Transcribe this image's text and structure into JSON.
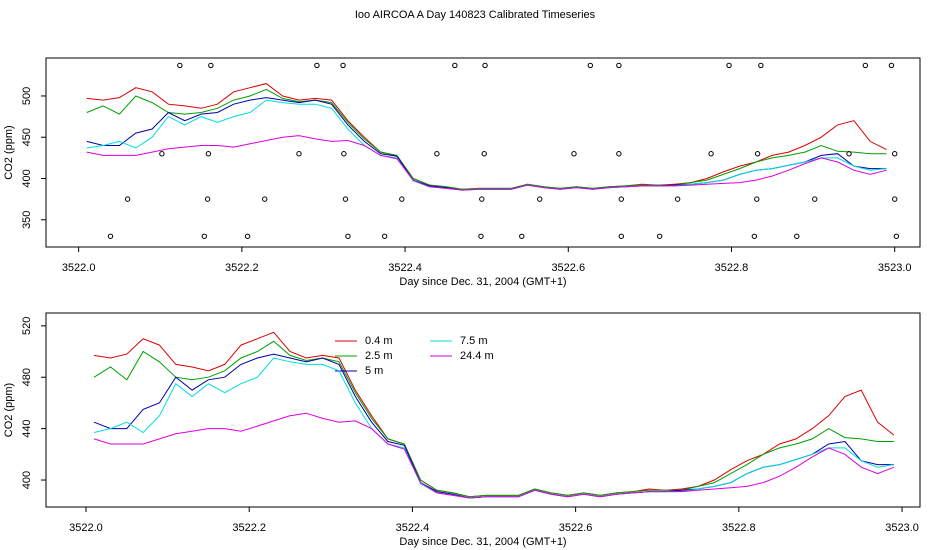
{
  "chart_data": [
    {
      "type": "line",
      "title": "Ioo AIRCOA A  Day 140823  Calibrated Timeseries",
      "xlabel": "Day since Dec. 31, 2004 (GMT+1)",
      "ylabel": "CO2 (ppm)",
      "xlim": [
        3521.96,
        3523.031
      ],
      "ylim": [
        317,
        546
      ],
      "xticks": [
        {
          "value": 3522,
          "label": "3522.0"
        },
        3522.2,
        3522.4,
        3522.6,
        3522.8,
        {
          "value": 3523,
          "label": "3523.0"
        }
      ],
      "yticks": [
        350,
        400,
        450,
        500
      ],
      "legend": false,
      "x": [
        3522.01,
        3522.03,
        3522.05,
        3522.07,
        3522.09,
        3522.11,
        3522.13,
        3522.15,
        3522.17,
        3522.19,
        3522.21,
        3522.23,
        3522.25,
        3522.27,
        3522.29,
        3522.31,
        3522.33,
        3522.35,
        3522.37,
        3522.39,
        3522.41,
        3522.43,
        3522.45,
        3522.47,
        3522.49,
        3522.51,
        3522.53,
        3522.55,
        3522.57,
        3522.59,
        3522.61,
        3522.63,
        3522.65,
        3522.67,
        3522.69,
        3522.71,
        3522.73,
        3522.75,
        3522.77,
        3522.79,
        3522.81,
        3522.83,
        3522.85,
        3522.87,
        3522.89,
        3522.91,
        3522.93,
        3522.95,
        3522.97,
        3522.99
      ],
      "series": [
        {
          "name": "0.4 m",
          "color": "#dd0000",
          "values": [
            497,
            495,
            498,
            510,
            505,
            490,
            488,
            485,
            490,
            505,
            510,
            515,
            500,
            495,
            497,
            495,
            470,
            450,
            432,
            428,
            400,
            392,
            390,
            387,
            388,
            388,
            388,
            393,
            390,
            388,
            390,
            388,
            390,
            391,
            393,
            392,
            393,
            395,
            400,
            408,
            415,
            420,
            428,
            432,
            440,
            450,
            465,
            470,
            445,
            435
          ]
        },
        {
          "name": "2.5 m",
          "color": "#00a000",
          "values": [
            480,
            488,
            478,
            500,
            492,
            480,
            478,
            480,
            485,
            495,
            500,
            508,
            497,
            493,
            495,
            492,
            468,
            448,
            432,
            428,
            400,
            392,
            390,
            387,
            388,
            388,
            388,
            393,
            390,
            388,
            390,
            388,
            390,
            391,
            392,
            392,
            392,
            395,
            398,
            405,
            412,
            420,
            425,
            428,
            432,
            440,
            433,
            432,
            430,
            430
          ]
        },
        {
          "name": "5 m",
          "color": "#0000aa",
          "values": [
            445,
            440,
            440,
            455,
            460,
            480,
            470,
            478,
            480,
            490,
            495,
            498,
            495,
            492,
            495,
            490,
            465,
            445,
            430,
            427,
            398,
            391,
            389,
            386,
            387,
            387,
            387,
            392,
            389,
            387,
            389,
            387,
            389,
            390,
            391,
            391,
            392,
            393,
            395,
            398,
            405,
            410,
            412,
            416,
            420,
            428,
            430,
            415,
            412,
            412
          ]
        },
        {
          "name": "7.5 m",
          "color": "#00dddd",
          "values": [
            437,
            440,
            445,
            437,
            450,
            475,
            465,
            475,
            468,
            475,
            480,
            495,
            492,
            490,
            490,
            485,
            460,
            440,
            428,
            425,
            397,
            390,
            388,
            386,
            387,
            387,
            387,
            392,
            389,
            387,
            389,
            387,
            389,
            390,
            391,
            391,
            391,
            393,
            395,
            398,
            405,
            410,
            412,
            416,
            420,
            425,
            425,
            415,
            410,
            412
          ]
        },
        {
          "name": "24.4 m",
          "color": "#dd00dd",
          "values": [
            432,
            428,
            428,
            428,
            432,
            436,
            438,
            440,
            440,
            438,
            442,
            446,
            450,
            452,
            448,
            445,
            446,
            440,
            428,
            424,
            398,
            390,
            388,
            386,
            387,
            387,
            387,
            392,
            389,
            387,
            389,
            387,
            389,
            390,
            391,
            391,
            391,
            392,
            393,
            394,
            395,
            398,
            403,
            410,
            418,
            425,
            420,
            410,
            405,
            410
          ]
        },
        {
          "type": "scatter",
          "color": "#000000",
          "x": [
            3522.124,
            3522.162,
            3522.292,
            3522.324,
            3522.461,
            3522.498,
            3522.627,
            3522.662,
            3522.797,
            3522.836,
            3522.964,
            3522.996,
            3522.102,
            3522.159,
            3522.27,
            3522.325,
            3522.439,
            3522.497,
            3522.607,
            3522.662,
            3522.775,
            3522.832,
            3522.944,
            3523.0,
            3522.06,
            3522.158,
            3522.228,
            3522.327,
            3522.396,
            3522.494,
            3522.565,
            3522.665,
            3522.734,
            3522.831,
            3522.902,
            3523.0,
            3522.039,
            3522.154,
            3522.207,
            3522.33,
            3522.375,
            3522.493,
            3522.543,
            3522.665,
            3522.712,
            3522.828,
            3522.88,
            3523.002
          ],
          "values": [
            537,
            537,
            537,
            537,
            537,
            537,
            537,
            537,
            537,
            537,
            537,
            537,
            430,
            430,
            430,
            430,
            430,
            430,
            430,
            430,
            430,
            430,
            430,
            430,
            375,
            375,
            375,
            375,
            375,
            375,
            375,
            375,
            375,
            375,
            375,
            375,
            330,
            330,
            330,
            330,
            330,
            330,
            330,
            330,
            330,
            330,
            330,
            330
          ]
        }
      ]
    },
    {
      "type": "line",
      "xlabel": "Day since Dec. 31, 2004 (GMT+1)",
      "ylabel": "CO2 (ppm)",
      "xlim": [
        3521.951,
        3523.022
      ],
      "ylim": [
        379,
        530
      ],
      "xticks": [
        {
          "value": 3522,
          "label": "3522.0"
        },
        3522.2,
        3522.4,
        3522.6,
        3522.8,
        {
          "value": 3523,
          "label": "3523.0"
        }
      ],
      "yticks": [
        400,
        440,
        480,
        520
      ],
      "legend": true,
      "x": [
        3522.01,
        3522.03,
        3522.05,
        3522.07,
        3522.09,
        3522.11,
        3522.13,
        3522.15,
        3522.17,
        3522.19,
        3522.21,
        3522.23,
        3522.25,
        3522.27,
        3522.29,
        3522.31,
        3522.33,
        3522.35,
        3522.37,
        3522.39,
        3522.41,
        3522.43,
        3522.45,
        3522.47,
        3522.49,
        3522.51,
        3522.53,
        3522.55,
        3522.57,
        3522.59,
        3522.61,
        3522.63,
        3522.65,
        3522.67,
        3522.69,
        3522.71,
        3522.73,
        3522.75,
        3522.77,
        3522.79,
        3522.81,
        3522.83,
        3522.85,
        3522.87,
        3522.89,
        3522.91,
        3522.93,
        3522.95,
        3522.97,
        3522.99
      ],
      "series": [
        {
          "name": "0.4 m",
          "color": "#dd0000",
          "values": [
            497,
            495,
            498,
            510,
            505,
            490,
            488,
            485,
            490,
            505,
            510,
            515,
            500,
            495,
            497,
            495,
            470,
            450,
            432,
            428,
            400,
            392,
            390,
            387,
            388,
            388,
            388,
            393,
            390,
            388,
            390,
            388,
            390,
            391,
            393,
            392,
            393,
            395,
            400,
            408,
            415,
            420,
            428,
            432,
            440,
            450,
            465,
            470,
            445,
            435
          ]
        },
        {
          "name": "2.5 m",
          "color": "#00a000",
          "values": [
            480,
            488,
            478,
            500,
            492,
            480,
            478,
            480,
            485,
            495,
            500,
            508,
            497,
            493,
            495,
            492,
            468,
            448,
            432,
            428,
            400,
            392,
            390,
            387,
            388,
            388,
            388,
            393,
            390,
            388,
            390,
            388,
            390,
            391,
            392,
            392,
            392,
            395,
            398,
            405,
            412,
            420,
            425,
            428,
            432,
            440,
            433,
            432,
            430,
            430
          ]
        },
        {
          "name": "5 m",
          "color": "#0000aa",
          "values": [
            445,
            440,
            440,
            455,
            460,
            480,
            470,
            478,
            480,
            490,
            495,
            498,
            495,
            492,
            495,
            490,
            465,
            445,
            430,
            427,
            398,
            391,
            389,
            386,
            387,
            387,
            387,
            392,
            389,
            387,
            389,
            387,
            389,
            390,
            391,
            391,
            392,
            393,
            395,
            398,
            405,
            410,
            412,
            416,
            420,
            428,
            430,
            415,
            412,
            412
          ]
        },
        {
          "name": "7.5 m",
          "color": "#00dddd",
          "values": [
            437,
            440,
            445,
            437,
            450,
            475,
            465,
            475,
            468,
            475,
            480,
            495,
            492,
            490,
            490,
            485,
            460,
            440,
            428,
            425,
            397,
            390,
            388,
            386,
            387,
            387,
            387,
            392,
            389,
            387,
            389,
            387,
            389,
            390,
            391,
            391,
            391,
            393,
            395,
            398,
            405,
            410,
            412,
            416,
            420,
            425,
            425,
            415,
            410,
            412
          ]
        },
        {
          "name": "24.4 m",
          "color": "#dd00dd",
          "values": [
            432,
            428,
            428,
            428,
            432,
            436,
            438,
            440,
            440,
            438,
            442,
            446,
            450,
            452,
            448,
            445,
            446,
            440,
            428,
            424,
            398,
            390,
            388,
            386,
            387,
            387,
            387,
            392,
            389,
            387,
            389,
            387,
            389,
            390,
            391,
            391,
            391,
            392,
            393,
            394,
            395,
            398,
            403,
            410,
            418,
            425,
            420,
            410,
            405,
            410
          ]
        }
      ]
    }
  ]
}
